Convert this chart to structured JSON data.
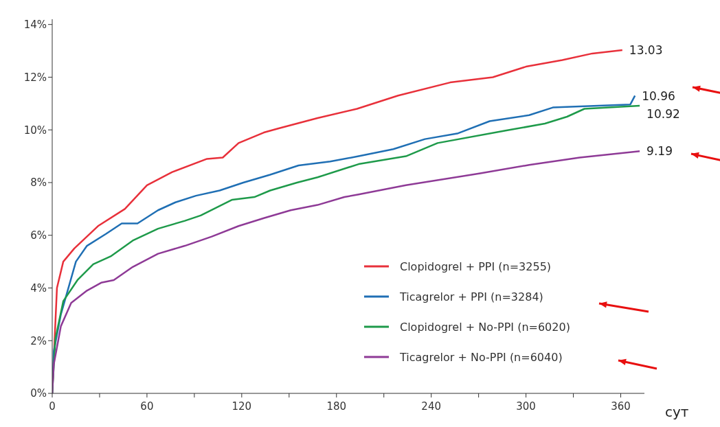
{
  "chart_data": {
    "type": "line",
    "xlabel": "сут",
    "xlim": [
      0,
      375
    ],
    "ylim": [
      0,
      14.2
    ],
    "xticks": [
      0,
      {
        "value": 30,
        "label": null
      },
      60,
      {
        "value": 90,
        "label": null
      },
      120,
      {
        "value": 150,
        "label": null
      },
      180,
      {
        "value": 210,
        "label": null
      },
      240,
      {
        "value": 270,
        "label": null
      },
      300,
      {
        "value": 330,
        "label": null
      },
      360
    ],
    "yticks": [
      {
        "value": 0,
        "label": "0%"
      },
      {
        "value": 2,
        "label": "2%"
      },
      {
        "value": 4,
        "label": "4%"
      },
      {
        "value": 6,
        "label": "6%"
      },
      {
        "value": 8,
        "label": "8%"
      },
      {
        "value": 10,
        "label": "10%"
      },
      {
        "value": 12,
        "label": "12%"
      },
      {
        "value": 14,
        "label": "14%"
      }
    ],
    "grid": false,
    "legend": "bottom right",
    "marker": "none",
    "line_style": "solid",
    "series": [
      {
        "name": "Clopidogrel + PPI (n=3255)",
        "color": "#e8303a",
        "x": [
          0,
          3,
          7,
          14,
          29,
          46,
          60,
          76,
          98,
          108,
          118,
          134,
          143,
          168,
          193,
          219,
          252,
          279,
          300,
          323,
          342,
          361
        ],
        "values": [
          0,
          4.0,
          5.0,
          5.5,
          6.35,
          7.0,
          7.9,
          8.4,
          8.9,
          8.95,
          9.5,
          9.9,
          10.05,
          10.45,
          10.8,
          11.3,
          11.8,
          12.0,
          12.4,
          12.65,
          12.9,
          13.03
        ]
      },
      {
        "name": "Ticagrelor + PPI (n=3284)",
        "color": "#1f6fb4",
        "x": [
          0,
          1,
          5.5,
          15,
          22,
          34,
          44,
          54,
          67,
          78,
          91,
          106,
          121,
          138,
          156,
          176,
          194,
          216,
          236,
          257,
          277,
          302,
          317,
          366,
          369
        ],
        "values": [
          0,
          1.6,
          3.0,
          5.0,
          5.6,
          6.05,
          6.45,
          6.45,
          6.95,
          7.25,
          7.5,
          7.7,
          8.0,
          8.3,
          8.65,
          8.8,
          9.0,
          9.27,
          9.65,
          9.87,
          10.33,
          10.56,
          10.85,
          10.96,
          11.3
        ]
      },
      {
        "name": "Clopidogrel + No-PPI (n=6020)",
        "color": "#1e9a4a",
        "x": [
          0,
          2,
          7,
          16,
          26,
          37,
          51,
          67,
          84,
          94,
          104,
          114,
          128,
          138,
          155,
          168,
          194,
          224,
          244,
          287,
          312,
          326,
          337,
          372
        ],
        "values": [
          0,
          2.07,
          3.5,
          4.3,
          4.9,
          5.2,
          5.8,
          6.25,
          6.55,
          6.75,
          7.05,
          7.35,
          7.45,
          7.7,
          8.0,
          8.2,
          8.7,
          9.0,
          9.5,
          9.97,
          10.24,
          10.5,
          10.8,
          10.92
        ]
      },
      {
        "name": "Ticagrelor + No-PPI (n=6040)",
        "color": "#8e3a96",
        "x": [
          0,
          1,
          5.5,
          12,
          22,
          31,
          39,
          51,
          67,
          84,
          101,
          118,
          134,
          151,
          168,
          185,
          194,
          224,
          271,
          302,
          334,
          372
        ],
        "values": [
          0,
          1.1,
          2.55,
          3.43,
          3.9,
          4.2,
          4.3,
          4.8,
          5.3,
          5.6,
          5.95,
          6.35,
          6.65,
          6.95,
          7.15,
          7.45,
          7.55,
          7.9,
          8.35,
          8.67,
          8.95,
          9.19
        ]
      }
    ],
    "annotations": [
      {
        "text": "13.03",
        "x": 361,
        "y": 13.03
      },
      {
        "text": "10.96",
        "x": 369,
        "y": 10.96
      },
      {
        "text": "10.92",
        "x": 372,
        "y": 10.92
      },
      {
        "text": "9.19",
        "x": 372,
        "y": 9.19
      }
    ]
  }
}
